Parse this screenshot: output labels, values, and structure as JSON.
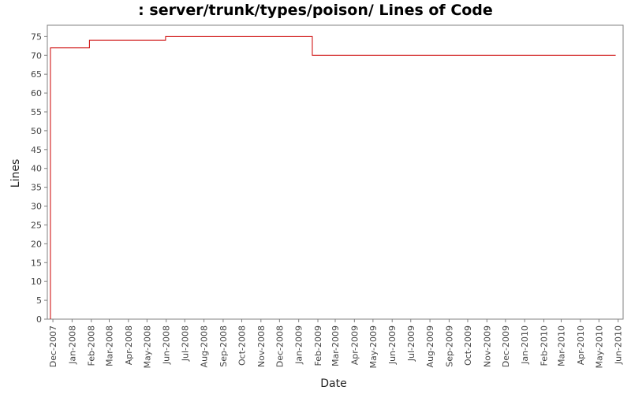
{
  "chart_data": {
    "type": "line",
    "title": ": server/trunk/types/poison/ Lines of Code",
    "xlabel": "Date",
    "ylabel": "Lines",
    "ylim": [
      0,
      78
    ],
    "y_ticks": [
      0,
      5,
      10,
      15,
      20,
      25,
      30,
      35,
      40,
      45,
      50,
      55,
      60,
      65,
      70,
      75
    ],
    "x_ticks": [
      "Dec-2007",
      "Jan-2008",
      "Feb-2008",
      "Mar-2008",
      "Apr-2008",
      "May-2008",
      "Jun-2008",
      "Jul-2008",
      "Aug-2008",
      "Sep-2008",
      "Oct-2008",
      "Nov-2008",
      "Dec-2008",
      "Jan-2009",
      "Feb-2009",
      "Mar-2009",
      "Apr-2009",
      "May-2009",
      "Jun-2009",
      "Jul-2009",
      "Aug-2009",
      "Sep-2009",
      "Oct-2009",
      "Nov-2009",
      "Dec-2009",
      "Jan-2010",
      "Feb-2010",
      "Mar-2010",
      "Apr-2010",
      "May-2010",
      "Jun-2010"
    ],
    "x_range": [
      "2007-11-22",
      "2010-06-09"
    ],
    "grid": false,
    "series_color": "#cc0000",
    "series": [
      {
        "step": true,
        "points": [
          {
            "x": "2007-11-27",
            "y": 0
          },
          {
            "x": "2007-11-27",
            "y": 72
          },
          {
            "x": "2008-01-29",
            "y": 74
          },
          {
            "x": "2008-05-31",
            "y": 75
          },
          {
            "x": "2009-01-23",
            "y": 70
          },
          {
            "x": "2010-05-28",
            "y": 70
          }
        ]
      }
    ]
  }
}
